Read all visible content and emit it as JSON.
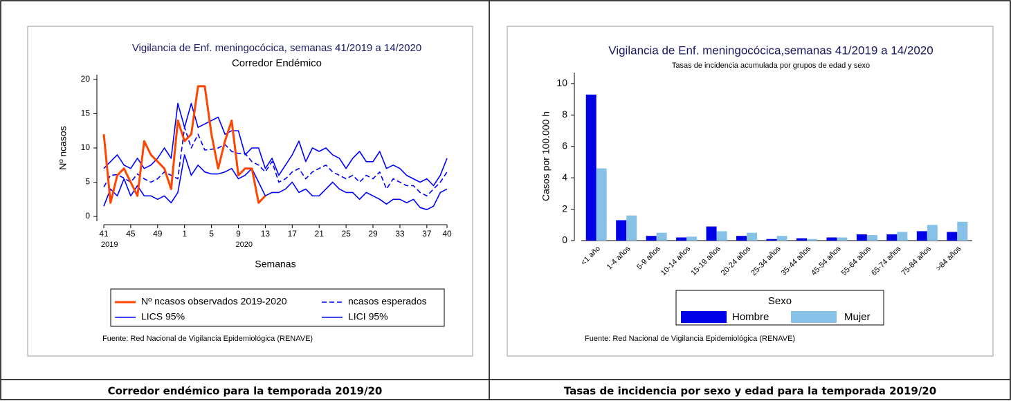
{
  "chart_data": [
    {
      "type": "line",
      "title": "Vigilancia de Enf. meningocócica, semanas 41/2019 a 14/2020",
      "subtitle": "Corredor Endémico",
      "x_label": "Semanas",
      "y_label": "Nº ncasos",
      "categories": [
        "41",
        null,
        null,
        null,
        "45",
        null,
        null,
        null,
        "49",
        null,
        null,
        null,
        "1",
        null,
        null,
        null,
        "5",
        null,
        null,
        null,
        "9",
        null,
        null,
        null,
        "13",
        null,
        null,
        null,
        "17",
        null,
        null,
        null,
        "21",
        null,
        null,
        null,
        "25",
        null,
        null,
        null,
        "29",
        null,
        null,
        null,
        "33",
        null,
        null,
        null,
        "37",
        null,
        null,
        "40"
      ],
      "category_years": [
        "2019",
        null,
        null,
        null,
        null,
        null,
        null,
        null,
        null,
        null,
        null,
        null,
        null,
        null,
        null,
        null,
        null,
        null,
        null,
        null,
        "2020",
        null,
        null,
        null,
        null,
        null,
        null,
        null,
        null,
        null,
        null,
        null,
        null,
        null,
        null,
        null,
        null,
        null,
        null,
        null,
        null,
        null,
        null,
        null,
        null,
        null,
        null,
        null,
        null,
        null,
        null,
        null
      ],
      "ylim": [
        -0.7,
        20.7
      ],
      "yticks": [
        0,
        5,
        10,
        15,
        20
      ],
      "series": [
        {
          "name": "Nº ncasos observados 2019-2020",
          "color": "#ff4500",
          "line_style": "solid",
          "values": [
            12,
            2,
            6,
            7,
            5,
            3,
            11,
            9,
            8,
            7,
            4,
            14,
            11,
            12,
            19,
            19,
            12,
            7,
            11,
            14,
            6,
            7,
            7,
            2,
            3,
            null,
            null,
            null,
            null,
            null,
            null,
            null,
            null,
            null,
            null,
            null,
            null,
            null,
            null,
            null,
            null,
            null,
            null,
            null,
            null,
            null,
            null,
            null,
            null,
            null,
            null,
            null
          ]
        },
        {
          "name": "ncasos esperados",
          "color": "#0000ff",
          "line_style": "dashed",
          "values": [
            4.3,
            6,
            6.1,
            5.6,
            5,
            6.2,
            5.5,
            5,
            5.5,
            6.5,
            6,
            5.5,
            13,
            10,
            12,
            9.7,
            9.8,
            10,
            10.5,
            9.5,
            9.2,
            9.2,
            8,
            7.5,
            6.5,
            8,
            5,
            5.5,
            6.5,
            7,
            5.5,
            6.5,
            7,
            7.5,
            6.5,
            6,
            5.5,
            6,
            5,
            6,
            5.5,
            6.5,
            4,
            5.5,
            5,
            4.5,
            4.5,
            3.5,
            3,
            4,
            5,
            6.5
          ]
        },
        {
          "name": "LICS 95%",
          "color": "#0000ff",
          "line_style": "solid",
          "values": [
            7,
            8,
            9,
            7.5,
            7,
            8.5,
            7,
            7.5,
            8.5,
            10,
            8.5,
            16.5,
            13,
            16.5,
            13,
            13.5,
            14,
            14.5,
            12,
            12.5,
            12.5,
            9,
            10,
            10,
            7,
            8.5,
            6,
            7.5,
            9,
            11,
            8,
            10,
            9.5,
            10,
            9,
            8.5,
            7,
            8.5,
            9.5,
            8,
            8,
            9.5,
            7,
            7.5,
            7,
            6,
            5.5,
            5,
            5.5,
            4.5,
            6,
            8.5
          ]
        },
        {
          "name": "LICI 95%",
          "color": "#0000ff",
          "line_style": "solid",
          "values": [
            1.5,
            4,
            3,
            5.5,
            3,
            4.5,
            3,
            3,
            2.5,
            3,
            2,
            3.5,
            9,
            6,
            7.5,
            6.5,
            6.2,
            6.2,
            6.5,
            7,
            5.5,
            6,
            7,
            5,
            3,
            3.5,
            3.5,
            4,
            5,
            3.5,
            4,
            3,
            3,
            4,
            5,
            4,
            3.5,
            3.5,
            2.5,
            3.5,
            3,
            2.5,
            1.8,
            2.5,
            2.5,
            2,
            2.5,
            1.3,
            1,
            1.5,
            3.5,
            4
          ]
        }
      ],
      "source": "Fuente: Red Nacional de Vigilancia Epidemiológica (RENAVE)"
    },
    {
      "type": "bar",
      "title": "Vigilancia de Enf. meningocócica,semanas 41/2019 a 14/2020",
      "subtitle": "Tasas de incidencia acumulada por grupos de edad y sexo",
      "y_label": "Casos por 100.000 h",
      "categories": [
        "<1 año",
        "1-4 años",
        "5-9 años",
        "10-14 años",
        "15-19 años",
        "20-24 años",
        "25-34 años",
        "35-44 años",
        "45-54 años",
        "55-64 años",
        "65-74 años",
        "75-84 años",
        ">84 años"
      ],
      "ylim": [
        0,
        10.7
      ],
      "yticks": [
        0,
        2,
        4,
        6,
        8,
        10
      ],
      "legend_title": "Sexo",
      "series": [
        {
          "name": "Hombre",
          "color": "#0000e6",
          "values": [
            9.3,
            1.3,
            0.3,
            0.2,
            0.9,
            0.3,
            0.1,
            0.15,
            0.2,
            0.4,
            0.4,
            0.6,
            0.55
          ]
        },
        {
          "name": "Mujer",
          "color": "#87c1e8",
          "values": [
            4.6,
            1.6,
            0.5,
            0.25,
            0.6,
            0.5,
            0.3,
            0.1,
            0.2,
            0.35,
            0.55,
            1.0,
            1.2
          ]
        }
      ],
      "source": "Fuente: Red Nacional de Vigilancia Epidemiológica (RENAVE)"
    }
  ],
  "captions": [
    "Corredor endémico para la temporada 2019/20",
    "Tasas de incidencia por sexo y edad para la temporada 2019/20"
  ]
}
